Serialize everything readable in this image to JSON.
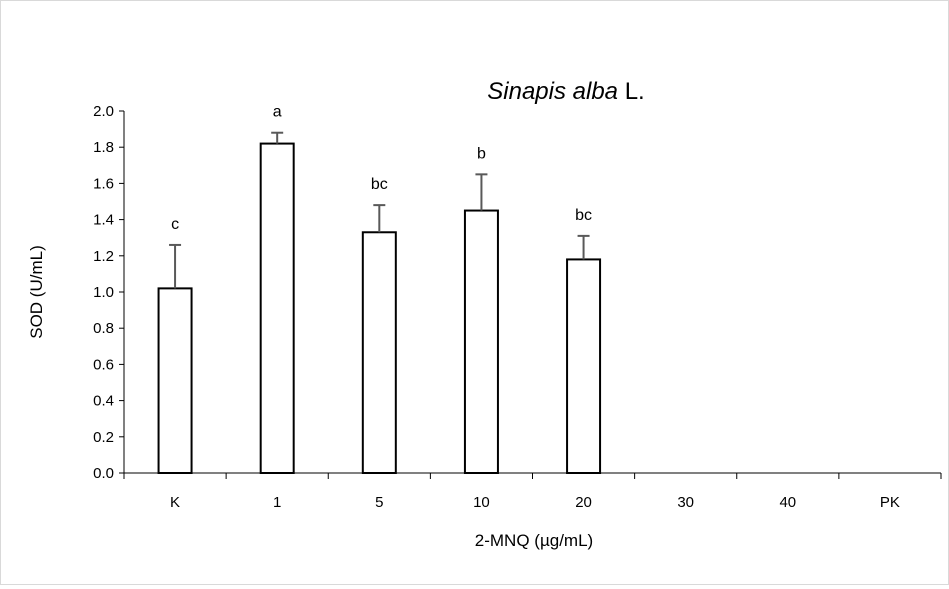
{
  "chart_data": {
    "type": "bar",
    "title": {
      "italic": "Sinapis alba",
      "normal": " L."
    },
    "xlabel": "2-MNQ (µg/mL)",
    "ylabel": "SOD (U/mL)",
    "ylim": [
      0,
      2.0
    ],
    "yticks": [
      "0.0",
      "0.2",
      "0.4",
      "0.6",
      "0.8",
      "1.0",
      "1.2",
      "1.4",
      "1.6",
      "1.8",
      "2.0"
    ],
    "categories": [
      "K",
      "1",
      "5",
      "10",
      "20",
      "30",
      "40",
      "PK"
    ],
    "values": [
      1.02,
      1.82,
      1.33,
      1.45,
      1.18,
      0,
      0,
      0
    ],
    "errors": [
      0.24,
      0.06,
      0.15,
      0.2,
      0.13,
      0,
      0,
      0
    ],
    "significance": [
      "c",
      "a",
      "bc",
      "b",
      "bc",
      "",
      "",
      ""
    ],
    "grid": false,
    "bar_fill": "#ffffff",
    "bar_stroke": "#000000",
    "error_color": "#595959"
  }
}
